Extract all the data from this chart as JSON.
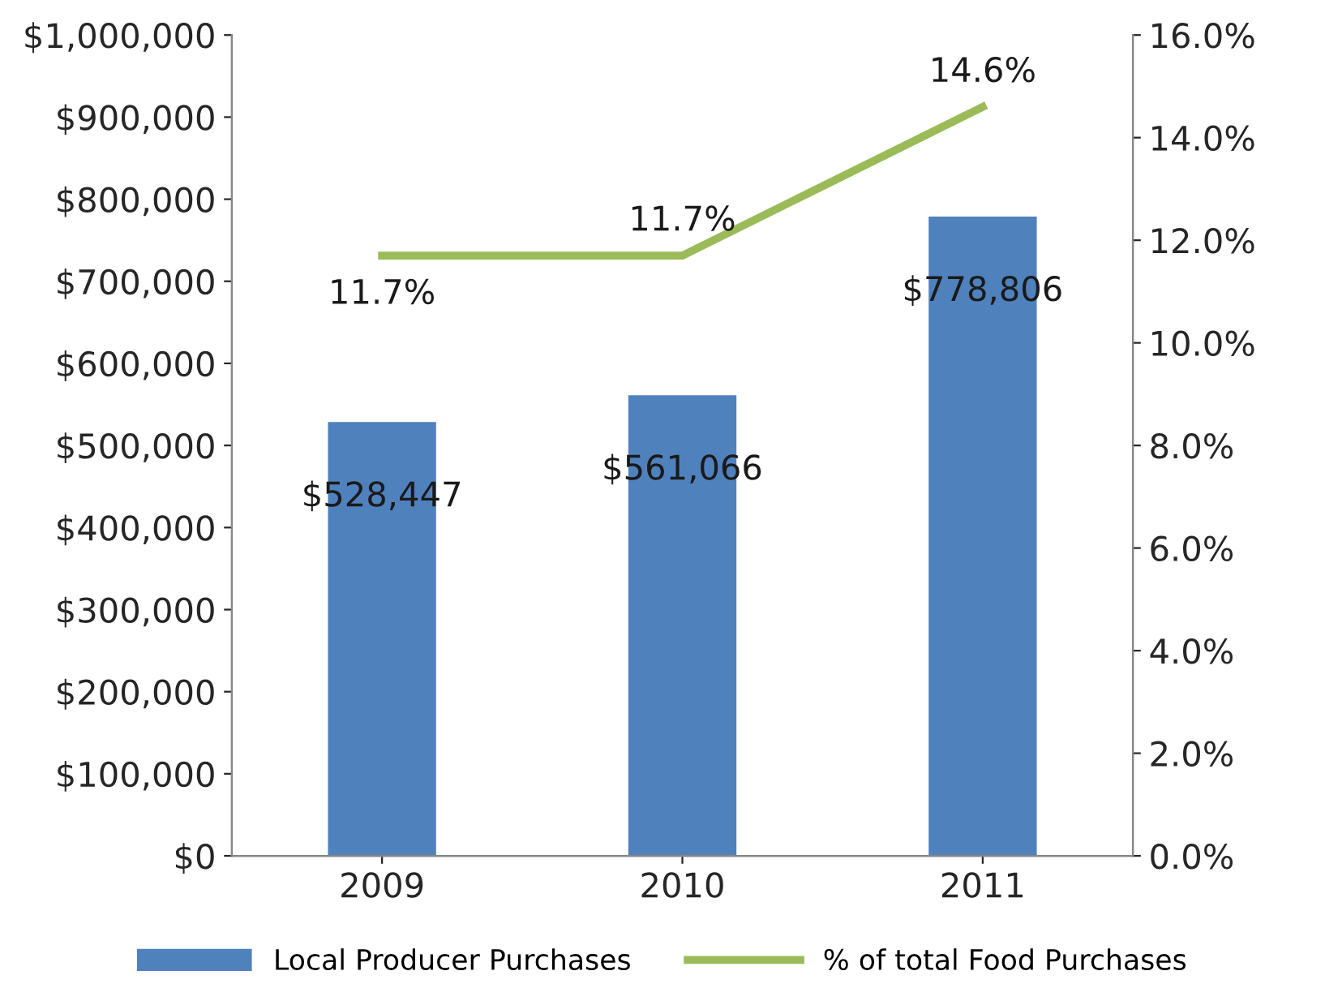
{
  "chart_data": {
    "type": "bar",
    "categories": [
      "2009",
      "2010",
      "2011"
    ],
    "series": [
      {
        "name": "Local Producer Purchases",
        "color": "#4f81bd",
        "values": [
          528447,
          561066,
          778806
        ],
        "value_labels": [
          "$528,447",
          "$561,066",
          "$778,806"
        ]
      },
      {
        "name": "% of total Food Purchases",
        "type": "line",
        "axis": "y2",
        "color": "#9bbb59",
        "values": [
          11.7,
          11.7,
          14.6
        ],
        "value_labels": [
          "11.7%",
          "11.7%",
          "14.6%"
        ]
      }
    ],
    "ylim": [
      0,
      1000000
    ],
    "yticks": [
      {
        "value": 0,
        "label": "$0"
      },
      {
        "value": 100000,
        "label": "$100,000"
      },
      {
        "value": 200000,
        "label": "$200,000"
      },
      {
        "value": 300000,
        "label": "$300,000"
      },
      {
        "value": 400000,
        "label": "$400,000"
      },
      {
        "value": 500000,
        "label": "$500,000"
      },
      {
        "value": 600000,
        "label": "$600,000"
      },
      {
        "value": 700000,
        "label": "$700,000"
      },
      {
        "value": 800000,
        "label": "$800,000"
      },
      {
        "value": 900000,
        "label": "$900,000"
      },
      {
        "value": 1000000,
        "label": "$1,000,000"
      }
    ],
    "y2lim": [
      0,
      16
    ],
    "y2ticks": [
      {
        "value": 0,
        "label": "0.0%"
      },
      {
        "value": 2,
        "label": "2.0%"
      },
      {
        "value": 4,
        "label": "4.0%"
      },
      {
        "value": 6,
        "label": "6.0%"
      },
      {
        "value": 8,
        "label": "8.0%"
      },
      {
        "value": 10,
        "label": "10.0%"
      },
      {
        "value": 12,
        "label": "12.0%"
      },
      {
        "value": 14,
        "label": "14.0%"
      },
      {
        "value": 16,
        "label": "16.0%"
      }
    ],
    "grid": false,
    "legend": "bottom",
    "marker": "none",
    "line_style": "solid"
  }
}
